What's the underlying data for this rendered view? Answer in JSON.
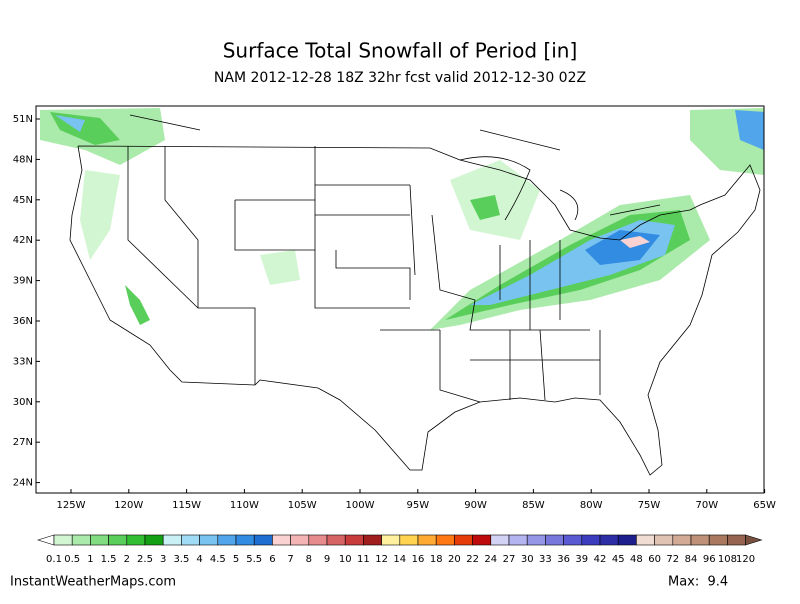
{
  "header": {
    "title": "Surface Total Snowfall of Period [in]",
    "subtitle": "NAM 2012-12-28 18Z 32hr fcst valid 2012-12-30 02Z"
  },
  "map": {
    "latitude_labels": [
      "51N",
      "48N",
      "45N",
      "42N",
      "39N",
      "36N",
      "33N",
      "30N",
      "27N",
      "24N"
    ],
    "longitude_labels": [
      "125W",
      "120W",
      "115W",
      "110W",
      "105W",
      "100W",
      "95W",
      "90W",
      "85W",
      "80W",
      "75W",
      "70W",
      "65W"
    ]
  },
  "colorbar": {
    "labels": [
      0.1,
      0.5,
      1,
      1.5,
      2,
      2.5,
      3,
      3.5,
      4,
      4.5,
      5,
      5.5,
      6,
      7,
      8,
      9,
      10,
      11,
      12,
      14,
      16,
      18,
      20,
      22,
      24,
      27,
      30,
      33,
      36,
      39,
      42,
      45,
      48,
      60,
      72,
      84,
      96,
      108,
      120
    ],
    "colors": [
      "#d2f5d2",
      "#aaeaaa",
      "#82dc82",
      "#5ace5a",
      "#32be32",
      "#14a014",
      "#c8f0f5",
      "#a0dcf5",
      "#78c3f0",
      "#50a5eb",
      "#328ce1",
      "#1e6ed2",
      "#fad2d2",
      "#f5b4b4",
      "#e68c8c",
      "#d76464",
      "#c83c3c",
      "#a01e1e",
      "#fff0a0",
      "#ffd250",
      "#ffaa32",
      "#ff7814",
      "#e63c0a",
      "#be0a0a",
      "#d2d2f5",
      "#b4b4f0",
      "#9696e6",
      "#7878dc",
      "#5a5ad2",
      "#3c3cbe",
      "#2d2da5",
      "#1e1e8c",
      "#f0dcd2",
      "#e1c3b4",
      "#d2aa96",
      "#be9178",
      "#aa785f",
      "#966450"
    ]
  },
  "footer": {
    "source": "InstantWeatherMaps.com",
    "max": "Max:  9.4"
  }
}
